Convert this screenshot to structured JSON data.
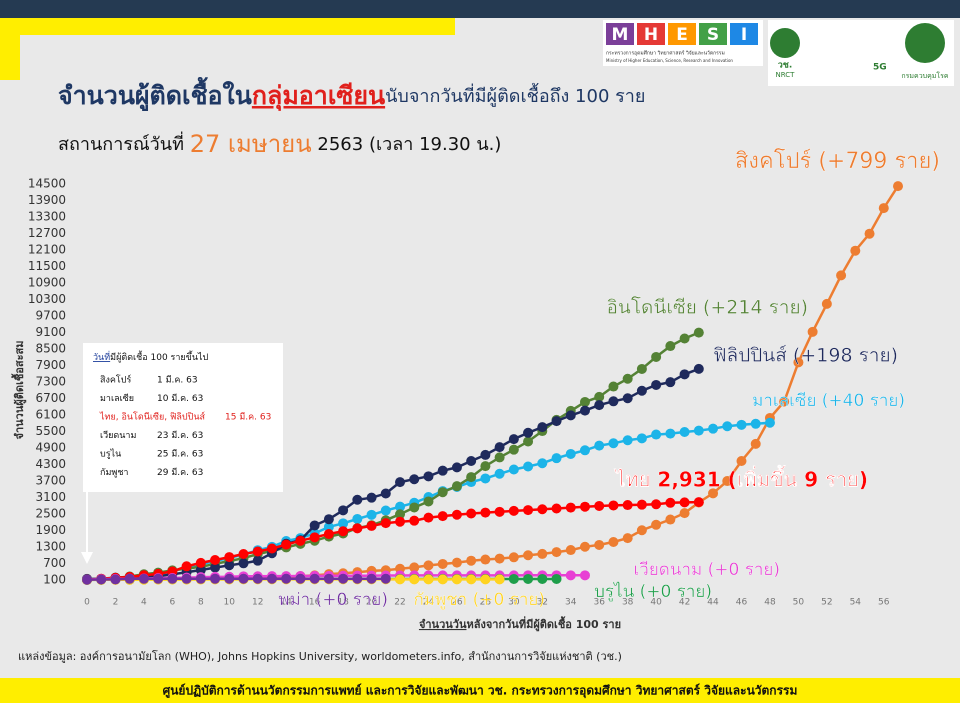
{
  "header": {
    "logo_letters": [
      "M",
      "H",
      "E",
      "S",
      "I"
    ],
    "ministry_th": "กระทรวงการอุดมศึกษา วิทยาศาสตร์ วิจัยและนวัตกรรม",
    "ministry_en": "Ministry of Higher Education, Science, Research and Innovation",
    "nrct": "วช.",
    "nrct_en": "NRCT",
    "fiveg": "5G",
    "ddc": "กรมควบคุมโรค"
  },
  "chart_data": {
    "type": "line",
    "title": [
      "จำนวนผู้ติดเชื้อใน",
      "กลุ่มอาเซียน",
      "นับจากวันที่มีผู้ติดเชื้อถึง 100 ราย"
    ],
    "subtitle": [
      "สถานการณ์วันที่",
      "27 เมษายน",
      "2563",
      "(เวลา 19.30 น.)"
    ],
    "x_label": [
      "จำนวนวัน",
      "หลังจากวันที่มีผู้ติดเชื้อ 100 ราย"
    ],
    "y_label": "จำนวนผู้ติดเชื้อสะสม",
    "xlim": [
      0,
      57
    ],
    "ylim": [
      100,
      14500
    ],
    "xticks": [
      0,
      2,
      4,
      6,
      8,
      10,
      12,
      14,
      16,
      18,
      20,
      22,
      24,
      26,
      28,
      30,
      32,
      34,
      36,
      38,
      40,
      42,
      44,
      46,
      48,
      50,
      52,
      54,
      56
    ],
    "yticks": [
      100,
      700,
      1300,
      1900,
      2500,
      3100,
      3700,
      4300,
      4900,
      5500,
      6100,
      6700,
      7300,
      7900,
      8500,
      9100,
      9700,
      10300,
      10900,
      11500,
      12100,
      12700,
      13300,
      13900,
      14500
    ],
    "x": [
      0,
      1,
      2,
      3,
      4,
      5,
      6,
      7,
      8,
      9,
      10,
      11,
      12,
      13,
      14,
      15,
      16,
      17,
      18,
      19,
      20,
      21,
      22,
      23,
      24,
      25,
      26,
      27,
      28,
      29,
      30,
      31,
      32,
      33,
      34,
      35,
      36,
      37,
      38,
      39,
      40,
      41,
      42,
      43,
      44,
      45,
      46,
      47,
      48,
      49,
      50,
      51,
      52,
      53,
      54,
      55,
      56,
      57
    ],
    "series": [
      {
        "name": "สิงคโปร์ (+799 ราย)",
        "color": "#ed7d31",
        "values": [
          106,
          108,
          110,
          112,
          117,
          130,
          138,
          150,
          150,
          160,
          178,
          178,
          200,
          212,
          226,
          243,
          266,
          313,
          345,
          385,
          432,
          455,
          509,
          558,
          631,
          683,
          732,
          802,
          844,
          879,
          926,
          1000,
          1049,
          1114,
          1189,
          1309,
          1375,
          1481,
          1623,
          1910,
          2108,
          2299,
          2532,
          2918,
          3252,
          3699,
          4427,
          5050,
          5992,
          6588,
          8014,
          9125,
          10141,
          11178,
          12075,
          12693,
          13624,
          14423
        ]
      },
      {
        "name": "อินโดนีเซีย (+214 ราย)",
        "color": "#548235",
        "values": [
          117,
          134,
          172,
          227,
          309,
          369,
          450,
          514,
          579,
          686,
          790,
          893,
          1046,
          1155,
          1285,
          1414,
          1528,
          1677,
          1790,
          1986,
          2092,
          2273,
          2491,
          2738,
          2956,
          3293,
          3512,
          3842,
          4241,
          4557,
          4839,
          5136,
          5516,
          5923,
          6248,
          6575,
          6760,
          7135,
          7418,
          7775,
          8211,
          8607,
          8882,
          9096,
          null,
          null,
          null,
          null,
          null,
          null,
          null,
          null,
          null,
          null,
          null,
          null,
          null,
          null
        ]
      },
      {
        "name": "ฟิลิปปินส์ (+198 ราย)",
        "color": "#1f2a5c",
        "values": [
          140,
          142,
          187,
          202,
          217,
          230,
          307,
          380,
          462,
          552,
          636,
          707,
          803,
          1075,
          1418,
          1546,
          2084,
          2311,
          2633,
          3018,
          3094,
          3246,
          3660,
          3764,
          3870,
          4076,
          4195,
          4428,
          4648,
          4932,
          5223,
          5453,
          5660,
          5878,
          6087,
          6259,
          6459,
          6599,
          6710,
          6981,
          7192,
          7294,
          7579,
          7777,
          null,
          null,
          null,
          null,
          null,
          null,
          null,
          null,
          null,
          null,
          null,
          null,
          null,
          null
        ]
      },
      {
        "name": "มาเลเซีย (+40 ราย)",
        "color": "#1cb4e8",
        "values": [
          117,
          129,
          149,
          158,
          197,
          238,
          428,
          553,
          673,
          790,
          900,
          1030,
          1183,
          1306,
          1518,
          1624,
          1796,
          2031,
          2161,
          2320,
          2470,
          2626,
          2766,
          2908,
          3116,
          3333,
          3483,
          3662,
          3793,
          3963,
          4119,
          4228,
          4346,
          4530,
          4683,
          4817,
          4987,
          5072,
          5182,
          5251,
          5389,
          5425,
          5482,
          5532,
          5603,
          5691,
          5742,
          5780,
          5820,
          null,
          null,
          null,
          null,
          null,
          null,
          null,
          null,
          null
        ]
      },
      {
        "name": "ไทย 2,931 (เพิ่มขึ้น 9 ราย)",
        "color": "#ff0000",
        "values": [
          114,
          147,
          177,
          212,
          272,
          322,
          411,
          599,
          721,
          827,
          934,
          1045,
          1136,
          1245,
          1388,
          1524,
          1651,
          1771,
          1875,
          1978,
          2067,
          2169,
          2220,
          2258,
          2369,
          2423,
          2473,
          2518,
          2551,
          2579,
          2613,
          2643,
          2672,
          2700,
          2733,
          2765,
          2792,
          2811,
          2826,
          2839,
          2854,
          2907,
          2922,
          2931,
          null,
          null,
          null,
          null,
          null,
          null,
          null,
          null,
          null,
          null,
          null,
          null,
          null,
          null
        ]
      },
      {
        "name": "เวียดนาม (+0 ราย)",
        "color": "#e840d4",
        "values": [
          113,
          134,
          141,
          148,
          153,
          169,
          174,
          188,
          203,
          212,
          218,
          233,
          237,
          240,
          241,
          245,
          249,
          251,
          255,
          257,
          258,
          262,
          265,
          266,
          267,
          268,
          268,
          268,
          268,
          268,
          268,
          270,
          270,
          270,
          270,
          270,
          null,
          null,
          null,
          null,
          null,
          null,
          null,
          null,
          null,
          null,
          null,
          null,
          null,
          null,
          null,
          null,
          null,
          null,
          null,
          null,
          null,
          null
        ]
      },
      {
        "name": "บรูไน (+0 ราย)",
        "color": "#1e9e4a",
        "values": [
          104,
          109,
          114,
          115,
          120,
          126,
          127,
          129,
          133,
          134,
          135,
          135,
          136,
          136,
          136,
          136,
          137,
          137,
          138,
          138,
          138,
          138,
          138,
          138,
          138,
          138,
          138,
          138,
          138,
          138,
          138,
          138,
          138,
          138,
          null,
          null,
          null,
          null,
          null,
          null,
          null,
          null,
          null,
          null,
          null,
          null,
          null,
          null,
          null,
          null,
          null,
          null,
          null,
          null,
          null,
          null,
          null,
          null
        ]
      },
      {
        "name": "กัมพูชา (+0 ราย)",
        "color": "#ffd320",
        "values": [
          103,
          107,
          109,
          109,
          110,
          114,
          114,
          115,
          117,
          119,
          120,
          122,
          122,
          122,
          122,
          122,
          122,
          122,
          122,
          122,
          122,
          122,
          122,
          122,
          122,
          122,
          122,
          122,
          122,
          122,
          null,
          null,
          null,
          null,
          null,
          null,
          null,
          null,
          null,
          null,
          null,
          null,
          null,
          null,
          null,
          null,
          null,
          null,
          null,
          null,
          null,
          null,
          null,
          null,
          null,
          null,
          null,
          null
        ]
      },
      {
        "name": "พม่า (+0 ราย)",
        "color": "#7030a0",
        "values": [
          111,
          119,
          121,
          144,
          144,
          144,
          144,
          144,
          144,
          144,
          145,
          146,
          146,
          146,
          146,
          146,
          146,
          146,
          146,
          146,
          146,
          146,
          null,
          null,
          null,
          null,
          null,
          null,
          null,
          null,
          null,
          null,
          null,
          null,
          null,
          null,
          null,
          null,
          null,
          null,
          null,
          null,
          null,
          null,
          null,
          null,
          null,
          null,
          null,
          null,
          null,
          null,
          null,
          null,
          null,
          null,
          null,
          null
        ]
      }
    ],
    "start_box": {
      "title": [
        "วันที่",
        "มีผู้ติดเชื้อ 100 รายขึ้นไป"
      ],
      "rows": [
        [
          "สิงคโปร์",
          "1 มี.ค. 63"
        ],
        [
          "มาเลเซีย",
          "10 มี.ค. 63"
        ],
        [
          "ไทย, อินโดนีเซีย, ฟิลิปปินส์",
          "15 มี.ค. 63"
        ],
        [
          "เวียดนาม",
          "23 มี.ค. 63"
        ],
        [
          "บรูไน",
          "25 มี.ค. 63"
        ],
        [
          "กัมพูชา",
          "29 มี.ค. 63"
        ]
      ]
    },
    "source": "แหล่งข้อมูล: องค์การอนามัยโลก (WHO), Johns Hopkins University, worldometers.info, สำนักงานการวิจัยแห่งชาติ (วช.)",
    "footer": "ศูนย์ปฏิบัติการด้านนวัตกรรมการแพทย์ และการวิจัยและพัฒนา  วช.   กระทรวงการอุดมศึกษา วิทยาศาสตร์ วิจัยและนวัตกรรม"
  }
}
